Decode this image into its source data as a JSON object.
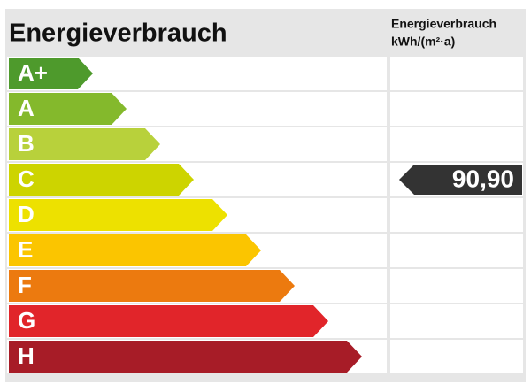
{
  "header": {
    "title": "Energieverbrauch",
    "unit_title": "Energieverbrauch",
    "unit": "kWh/(m²·a)"
  },
  "rows": [
    {
      "label": "A+",
      "color": "#4e9a2c"
    },
    {
      "label": "A",
      "color": "#84b92c"
    },
    {
      "label": "B",
      "color": "#b8d13b"
    },
    {
      "label": "C",
      "color": "#cdd400",
      "value": "90,90"
    },
    {
      "label": "D",
      "color": "#ede100"
    },
    {
      "label": "E",
      "color": "#fbc500"
    },
    {
      "label": "F",
      "color": "#ec7a0f"
    },
    {
      "label": "G",
      "color": "#e1252a"
    },
    {
      "label": "H",
      "color": "#a71c27"
    }
  ]
}
